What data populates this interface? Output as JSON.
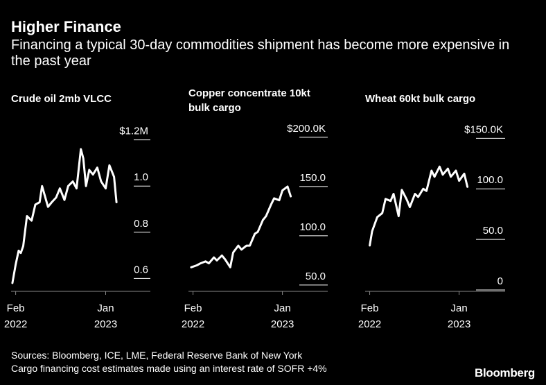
{
  "title": "Higher Finance",
  "subtitle": "Financing a typical 30-day commodities shipment has become more expensive in the past year",
  "footer": {
    "sources": "Sources: Bloomberg, ICE, LME, Federal Reserve Bank of New York",
    "note": "Cargo financing cost estimates made using an interest rate of SOFR +4%"
  },
  "brand": "Bloomberg",
  "colors": {
    "background": "#000000",
    "line": "#ffffff"
  },
  "chart_data": [
    {
      "type": "line",
      "title": "Crude oil 2mb VLCC",
      "x_ticks": [
        [
          "Feb",
          "2022"
        ],
        [
          "Jan",
          "2023"
        ]
      ],
      "y_ticks": [
        "$1.2M",
        "1.0",
        "0.8",
        "0.6"
      ],
      "y_tick_values": [
        1.2,
        1.0,
        0.8,
        0.6
      ],
      "ylim": [
        0.55,
        1.22
      ],
      "x_tick_dates": [
        "2022-02-01",
        "2023-01-01"
      ],
      "x": [
        "2022-01-20",
        "2022-02-01",
        "2022-02-12",
        "2022-02-20",
        "2022-03-01",
        "2022-03-15",
        "2022-04-01",
        "2022-04-15",
        "2022-05-01",
        "2022-05-10",
        "2022-06-01",
        "2022-06-15",
        "2022-07-01",
        "2022-07-15",
        "2022-08-01",
        "2022-08-15",
        "2022-09-01",
        "2022-09-15",
        "2022-10-01",
        "2022-10-10",
        "2022-10-20",
        "2022-11-01",
        "2022-11-15",
        "2022-12-01",
        "2022-12-15",
        "2023-01-01",
        "2023-01-15",
        "2023-02-01",
        "2023-02-10"
      ],
      "values": [
        0.58,
        0.66,
        0.72,
        0.71,
        0.74,
        0.87,
        0.85,
        0.92,
        0.93,
        1.0,
        0.91,
        0.93,
        0.95,
        0.99,
        0.94,
        1.0,
        1.02,
        0.99,
        1.16,
        1.12,
        1.0,
        1.07,
        1.05,
        1.08,
        1.02,
        0.99,
        1.09,
        1.04,
        0.93
      ]
    },
    {
      "type": "line",
      "title": "Copper concentrate 10kt bulk cargo",
      "x_ticks": [
        [
          "Feb",
          "2022"
        ],
        [
          "Jan",
          "2023"
        ]
      ],
      "y_ticks": [
        "$200.0K",
        "150.0",
        "100.0",
        "50.0"
      ],
      "y_tick_values": [
        200,
        150,
        100,
        50
      ],
      "ylim": [
        45,
        202
      ],
      "x_tick_dates": [
        "2022-02-01",
        "2023-01-01"
      ],
      "x": [
        "2022-01-25",
        "2022-02-15",
        "2022-03-01",
        "2022-03-20",
        "2022-04-01",
        "2022-04-20",
        "2022-05-01",
        "2022-05-20",
        "2022-06-01",
        "2022-06-20",
        "2022-07-01",
        "2022-07-20",
        "2022-08-01",
        "2022-08-20",
        "2022-09-01",
        "2022-09-20",
        "2022-10-01",
        "2022-10-20",
        "2022-11-01",
        "2022-11-20",
        "2022-12-01",
        "2022-12-20",
        "2023-01-01",
        "2023-01-20",
        "2023-02-01"
      ],
      "values": [
        68,
        70,
        72,
        74,
        72,
        78,
        75,
        80,
        76,
        68,
        83,
        90,
        86,
        90,
        90,
        102,
        104,
        116,
        120,
        132,
        138,
        136,
        146,
        150,
        140
      ]
    },
    {
      "type": "line",
      "title": "Wheat 60kt bulk cargo",
      "x_ticks": [
        [
          "Feb",
          "2022"
        ],
        [
          "Jan",
          "2023"
        ]
      ],
      "y_ticks": [
        "$150.0K",
        "100.0",
        "50.0",
        "0"
      ],
      "y_tick_values": [
        150,
        100,
        50,
        0
      ],
      "ylim": [
        0,
        153
      ],
      "x_tick_dates": [
        "2022-02-01",
        "2023-01-01"
      ],
      "x": [
        "2022-02-01",
        "2022-02-10",
        "2022-03-01",
        "2022-03-20",
        "2022-04-01",
        "2022-04-20",
        "2022-05-01",
        "2022-05-20",
        "2022-06-01",
        "2022-06-20",
        "2022-07-01",
        "2022-07-20",
        "2022-08-01",
        "2022-08-20",
        "2022-09-01",
        "2022-09-20",
        "2022-10-01",
        "2022-10-20",
        "2022-11-01",
        "2022-11-20",
        "2022-12-01",
        "2022-12-20",
        "2023-01-01",
        "2023-01-20",
        "2023-02-01"
      ],
      "values": [
        44,
        58,
        72,
        76,
        90,
        88,
        95,
        73,
        99,
        89,
        82,
        95,
        92,
        100,
        98,
        118,
        112,
        122,
        114,
        120,
        112,
        118,
        108,
        115,
        102
      ]
    }
  ]
}
